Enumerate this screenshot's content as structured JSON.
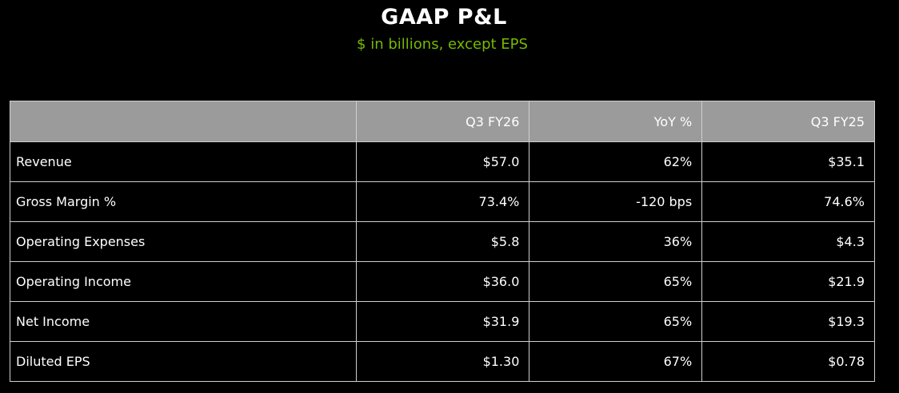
{
  "header": {
    "title": "GAAP P&L",
    "subtitle": "$ in billions, except EPS"
  },
  "table": {
    "columns": [
      "",
      "Q3 FY26",
      "YoY %",
      "Q3 FY25"
    ],
    "rows": [
      [
        "Revenue",
        "$57.0",
        "62%",
        "$35.1"
      ],
      [
        "Gross Margin %",
        "73.4%",
        "-120 bps",
        "74.6%"
      ],
      [
        "Operating Expenses",
        "$5.8",
        "36%",
        "$4.3"
      ],
      [
        "Operating Income",
        "$36.0",
        "65%",
        "$21.9"
      ],
      [
        "Net Income",
        "$31.9",
        "65%",
        "$19.3"
      ],
      [
        "Diluted EPS",
        "$1.30",
        "67%",
        "$0.78"
      ]
    ]
  },
  "colors": {
    "accent": "#76b900",
    "header_bg": "#9b9b9b",
    "background": "#000000"
  }
}
